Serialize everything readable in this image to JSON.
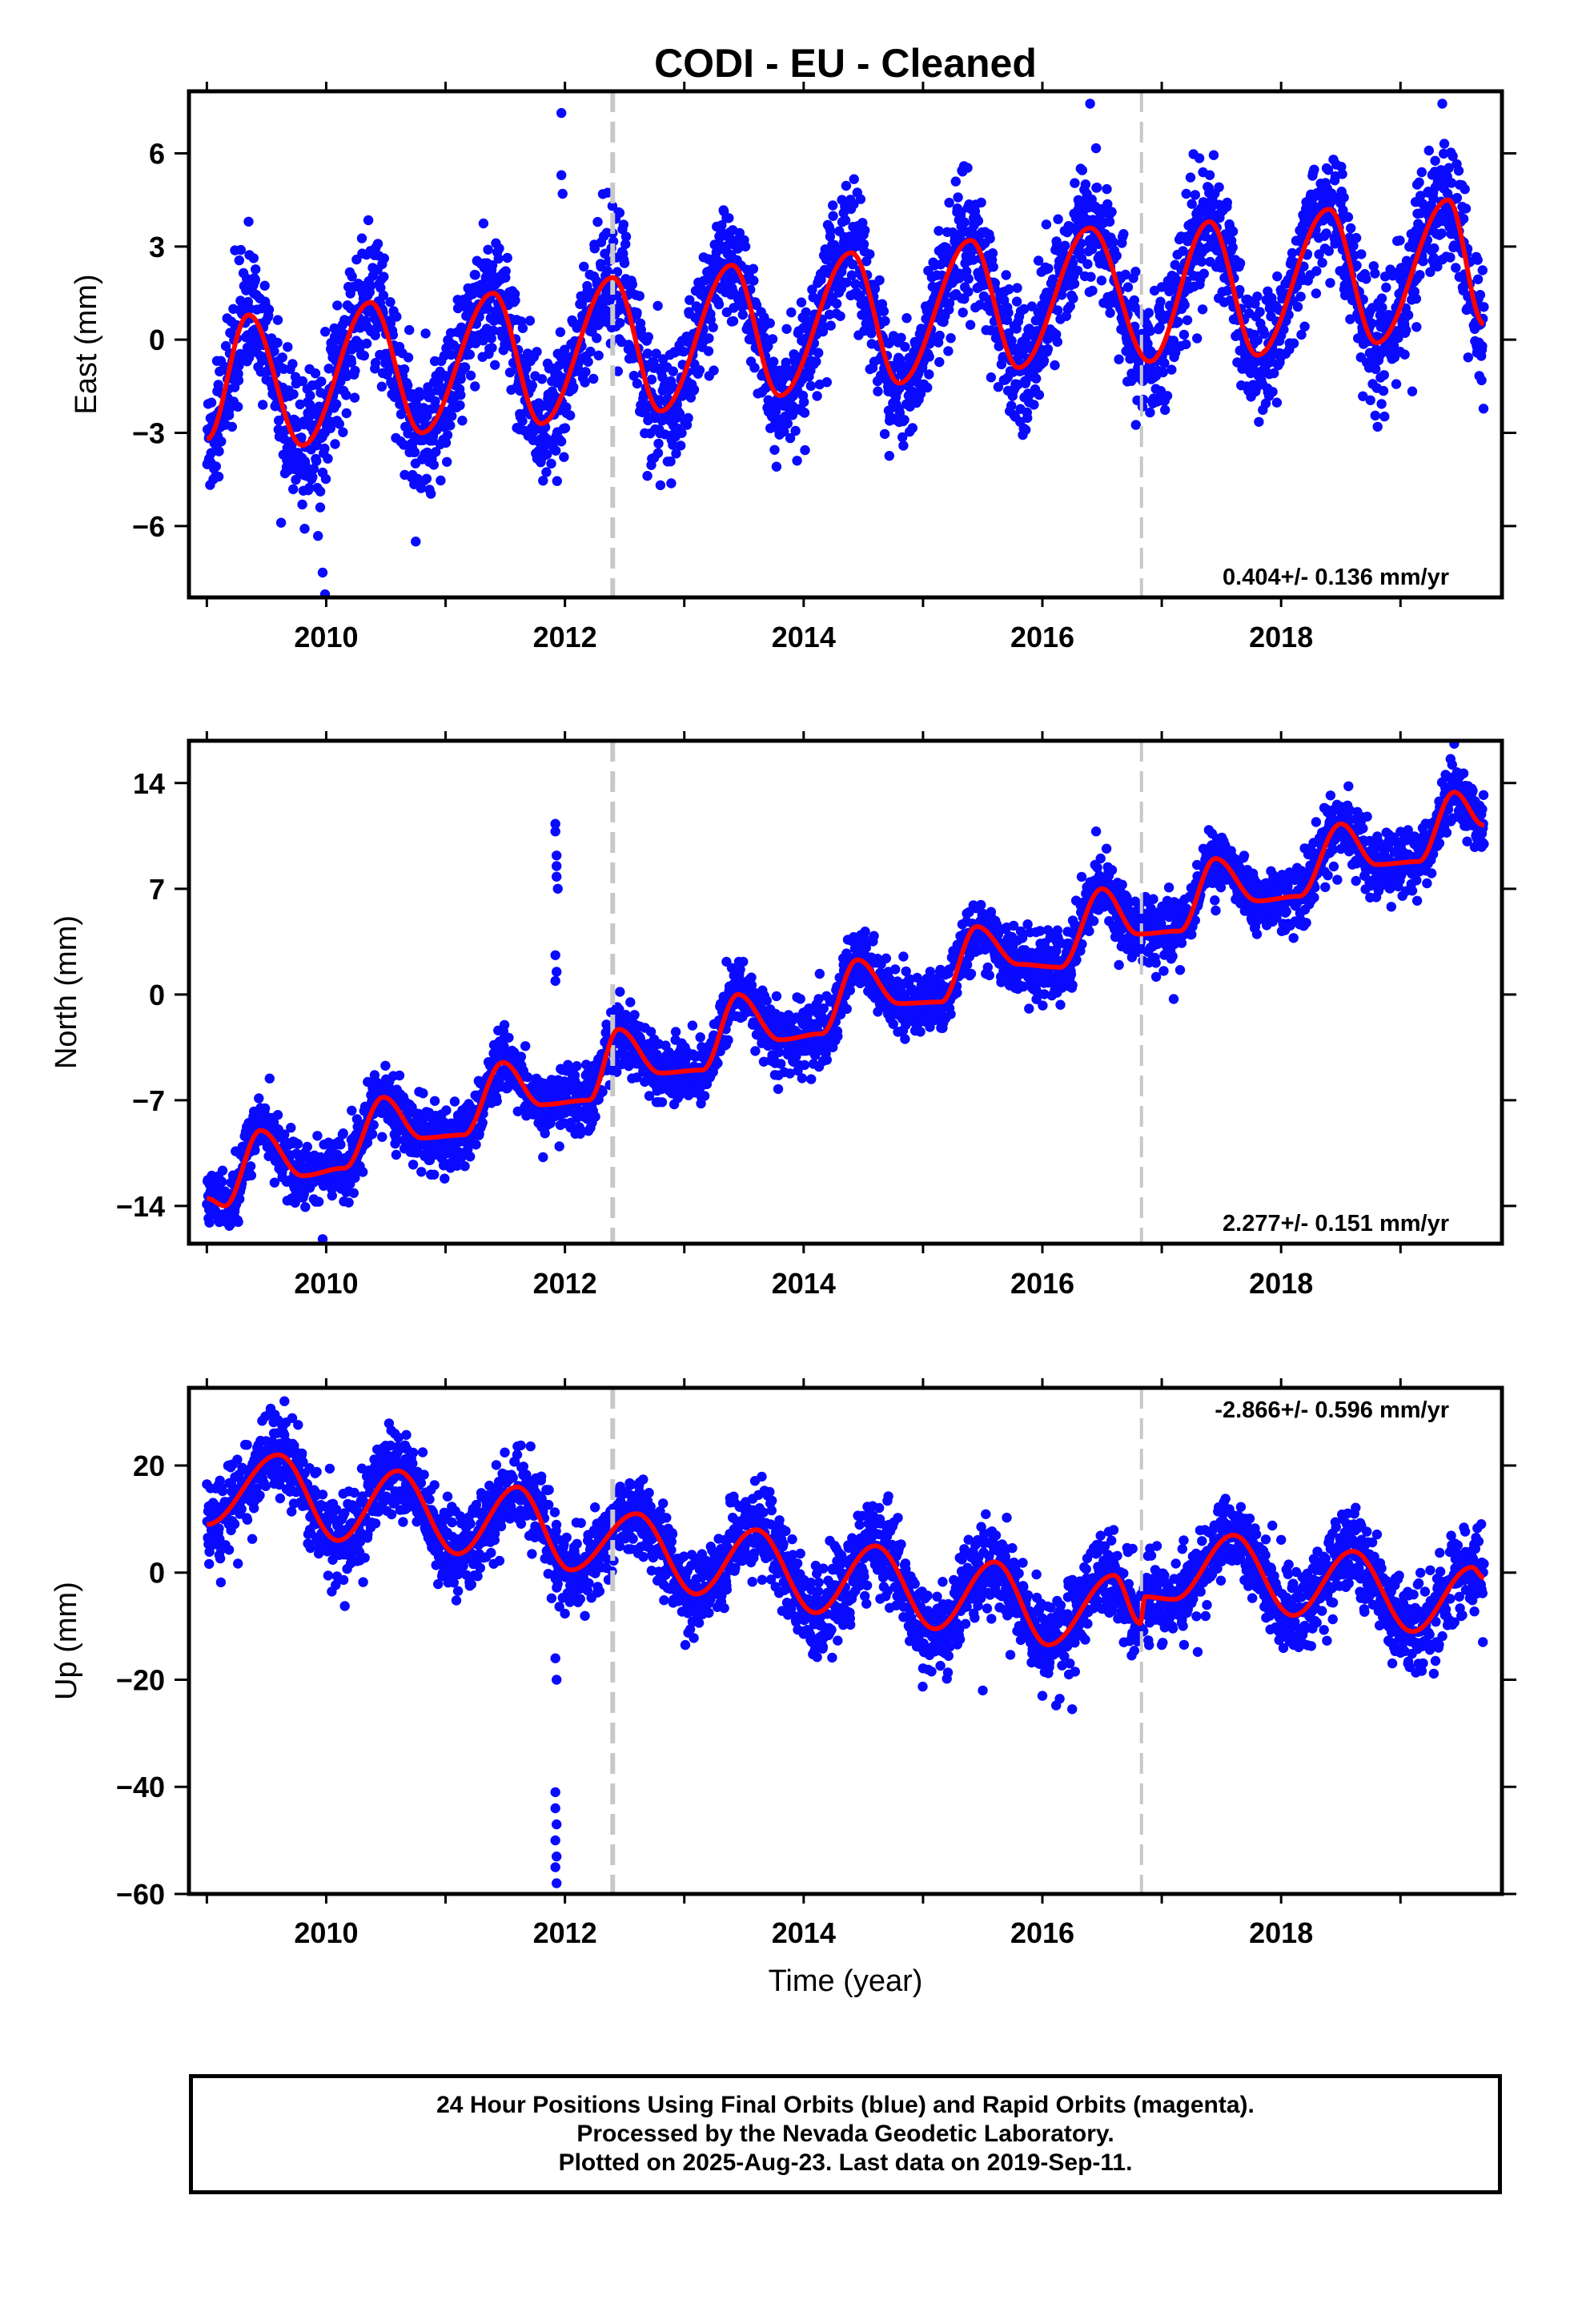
{
  "title": "CODI  - EU - Cleaned",
  "colors": {
    "dots": "#0a0aff",
    "model": "#ff0000",
    "break_lines": "#c8c8c8",
    "frame": "#000000"
  },
  "chart_data": [
    {
      "type": "scatter",
      "component": "East",
      "ylabel": "East (mm)",
      "xlim": [
        2008.85,
        2019.85
      ],
      "ylim": [
        -8.3,
        8.0
      ],
      "yticks": [
        6,
        3,
        0,
        -3,
        -6
      ],
      "ytick_labels": [
        "6",
        "3",
        "0",
        "−3",
        "−6"
      ],
      "xticks": [
        2010,
        2012,
        2014,
        2016,
        2018
      ],
      "xtick_labels": [
        "2010",
        "2012",
        "2014",
        "2016",
        "2018"
      ],
      "rate_label": "0.404+/- 0.136 mm/yr",
      "break_lines": [
        2012.4,
        2016.83
      ],
      "model_peaks": [
        {
          "x": 2009.35,
          "y": 0.8
        },
        {
          "x": 2010.37,
          "y": 1.2
        },
        {
          "x": 2011.4,
          "y": 1.5
        },
        {
          "x": 2012.4,
          "y": 2.0
        },
        {
          "x": 2013.4,
          "y": 2.4
        },
        {
          "x": 2014.4,
          "y": 2.8
        },
        {
          "x": 2015.4,
          "y": 3.2
        },
        {
          "x": 2016.4,
          "y": 3.6
        },
        {
          "x": 2017.4,
          "y": 3.8
        },
        {
          "x": 2018.4,
          "y": 4.2
        },
        {
          "x": 2019.4,
          "y": 4.5
        }
      ],
      "model_troughs": [
        {
          "x": 2009.0,
          "y": -3.2
        },
        {
          "x": 2009.8,
          "y": -3.4
        },
        {
          "x": 2010.8,
          "y": -3.0
        },
        {
          "x": 2011.8,
          "y": -2.7
        },
        {
          "x": 2012.8,
          "y": -2.3
        },
        {
          "x": 2013.8,
          "y": -1.8
        },
        {
          "x": 2014.8,
          "y": -1.4
        },
        {
          "x": 2015.8,
          "y": -0.9
        },
        {
          "x": 2016.9,
          "y": -0.7
        },
        {
          "x": 2017.8,
          "y": -0.5
        },
        {
          "x": 2018.8,
          "y": -0.1
        },
        {
          "x": 2019.7,
          "y": 0.5
        }
      ],
      "scatter_sd": 1.0,
      "outliers": [
        {
          "x": 2009.35,
          "y": 3.8
        },
        {
          "x": 2009.95,
          "y": -5.4
        },
        {
          "x": 2009.97,
          "y": -7.5
        },
        {
          "x": 2009.99,
          "y": -8.2
        },
        {
          "x": 2010.75,
          "y": -6.5
        },
        {
          "x": 2011.97,
          "y": 7.3
        },
        {
          "x": 2011.97,
          "y": 5.3
        },
        {
          "x": 2011.98,
          "y": 4.7
        },
        {
          "x": 2016.4,
          "y": 7.6
        },
        {
          "x": 2019.35,
          "y": 7.6
        }
      ]
    },
    {
      "type": "scatter",
      "component": "North",
      "ylabel": "North (mm)",
      "xlim": [
        2008.85,
        2019.85
      ],
      "ylim": [
        -16.5,
        16.8
      ],
      "yticks": [
        14,
        7,
        0,
        -7,
        -14
      ],
      "ytick_labels": [
        "14",
        "7",
        "0",
        "−7",
        "−14"
      ],
      "xticks": [
        2010,
        2012,
        2014,
        2016,
        2018
      ],
      "xtick_labels": [
        "2010",
        "2012",
        "2014",
        "2016",
        "2018"
      ],
      "rate_label": "2.277+/- 0.151 mm/yr",
      "break_lines": [
        2012.4,
        2016.83
      ],
      "model_peaks": [
        {
          "x": 2009.45,
          "y": -9.0
        },
        {
          "x": 2010.48,
          "y": -6.8
        },
        {
          "x": 2011.48,
          "y": -4.5
        },
        {
          "x": 2012.45,
          "y": -2.3
        },
        {
          "x": 2013.45,
          "y": 0.0
        },
        {
          "x": 2014.45,
          "y": 2.3
        },
        {
          "x": 2015.45,
          "y": 4.5
        },
        {
          "x": 2016.5,
          "y": 7.0
        },
        {
          "x": 2017.45,
          "y": 9.0
        },
        {
          "x": 2018.5,
          "y": 11.3
        },
        {
          "x": 2019.45,
          "y": 13.4
        }
      ],
      "model_troughs": [
        {
          "x": 2009.0,
          "y": -13.5
        },
        {
          "x": 2009.15,
          "y": -14.0
        },
        {
          "x": 2009.8,
          "y": -12.0
        },
        {
          "x": 2010.15,
          "y": -11.5
        },
        {
          "x": 2010.8,
          "y": -9.5
        },
        {
          "x": 2011.15,
          "y": -9.3
        },
        {
          "x": 2011.8,
          "y": -7.3
        },
        {
          "x": 2012.2,
          "y": -7.0
        },
        {
          "x": 2012.8,
          "y": -5.2
        },
        {
          "x": 2013.15,
          "y": -5.0
        },
        {
          "x": 2013.8,
          "y": -3.0
        },
        {
          "x": 2014.15,
          "y": -2.6
        },
        {
          "x": 2014.8,
          "y": -0.6
        },
        {
          "x": 2015.15,
          "y": -0.5
        },
        {
          "x": 2015.8,
          "y": 2.0
        },
        {
          "x": 2016.15,
          "y": 1.8
        },
        {
          "x": 2016.8,
          "y": 4.0
        },
        {
          "x": 2017.15,
          "y": 4.2
        },
        {
          "x": 2017.8,
          "y": 6.2
        },
        {
          "x": 2018.15,
          "y": 6.5
        },
        {
          "x": 2018.8,
          "y": 8.6
        },
        {
          "x": 2019.15,
          "y": 8.8
        },
        {
          "x": 2019.7,
          "y": 11.2
        }
      ],
      "scatter_sd": 1.1,
      "outliers": [
        {
          "x": 2011.92,
          "y": 11.3
        },
        {
          "x": 2011.92,
          "y": 10.8
        },
        {
          "x": 2011.93,
          "y": 9.2
        },
        {
          "x": 2011.93,
          "y": 8.5
        },
        {
          "x": 2011.93,
          "y": 7.8
        },
        {
          "x": 2011.94,
          "y": 7.0
        },
        {
          "x": 2011.92,
          "y": 2.6
        },
        {
          "x": 2011.93,
          "y": 1.5
        },
        {
          "x": 2011.92,
          "y": 0.9
        },
        {
          "x": 2009.97,
          "y": -16.2
        },
        {
          "x": 2016.45,
          "y": 10.8
        },
        {
          "x": 2017.1,
          "y": -0.3
        },
        {
          "x": 2019.45,
          "y": 16.6
        }
      ]
    },
    {
      "type": "scatter",
      "component": "Up",
      "ylabel": "Up (mm)",
      "xlim": [
        2008.85,
        2019.85
      ],
      "ylim": [
        -60,
        34.5
      ],
      "yticks": [
        20,
        0,
        -20,
        -40,
        -60
      ],
      "ytick_labels": [
        "20",
        "0",
        "−20",
        "−40",
        "−60"
      ],
      "xticks": [
        2010,
        2012,
        2014,
        2016,
        2018
      ],
      "xtick_labels": [
        "2010",
        "2012",
        "2014",
        "2016",
        "2018"
      ],
      "rate_label": "-2.866+/- 0.596 mm/yr",
      "break_lines": [
        2012.4,
        2016.83
      ],
      "model_peaks": [
        {
          "x": 2009.6,
          "y": 22.0
        },
        {
          "x": 2010.6,
          "y": 19.0
        },
        {
          "x": 2011.6,
          "y": 16.0
        },
        {
          "x": 2012.6,
          "y": 11.0
        },
        {
          "x": 2013.6,
          "y": 8.0
        },
        {
          "x": 2014.6,
          "y": 5.0
        },
        {
          "x": 2015.6,
          "y": 2.0
        },
        {
          "x": 2016.6,
          "y": -0.5
        },
        {
          "x": 2017.6,
          "y": 7.0
        },
        {
          "x": 2018.6,
          "y": 4.0
        },
        {
          "x": 2019.6,
          "y": 1.0
        }
      ],
      "model_troughs": [
        {
          "x": 2009.0,
          "y": 9.0
        },
        {
          "x": 2010.1,
          "y": 6.0
        },
        {
          "x": 2011.1,
          "y": 3.5
        },
        {
          "x": 2012.05,
          "y": 0.5
        },
        {
          "x": 2013.1,
          "y": -4.0
        },
        {
          "x": 2014.1,
          "y": -7.5
        },
        {
          "x": 2015.1,
          "y": -10.5
        },
        {
          "x": 2016.05,
          "y": -13.5
        },
        {
          "x": 2016.82,
          "y": -9.5
        },
        {
          "x": 2016.86,
          "y": -4.5
        },
        {
          "x": 2017.1,
          "y": -5.0
        },
        {
          "x": 2018.1,
          "y": -8.0
        },
        {
          "x": 2019.1,
          "y": -11.0
        },
        {
          "x": 2019.7,
          "y": -1.0
        }
      ],
      "scatter_sd": 4.0,
      "outliers": [
        {
          "x": 2011.92,
          "y": -41.0
        },
        {
          "x": 2011.92,
          "y": -44.0
        },
        {
          "x": 2011.93,
          "y": -47.0
        },
        {
          "x": 2011.92,
          "y": -50.0
        },
        {
          "x": 2011.93,
          "y": -53.0
        },
        {
          "x": 2011.92,
          "y": -55.0
        },
        {
          "x": 2011.93,
          "y": -58.0
        },
        {
          "x": 2011.93,
          "y": -20.0
        },
        {
          "x": 2011.92,
          "y": -16.0
        },
        {
          "x": 2009.65,
          "y": 32.0
        },
        {
          "x": 2015.5,
          "y": -22.0
        },
        {
          "x": 2016.0,
          "y": -23.0
        }
      ]
    }
  ],
  "footer": {
    "line1": "24 Hour Positions Using Final Orbits (blue) and Rapid Orbits (magenta).",
    "line2": "Processed by the Nevada Geodetic Laboratory.",
    "line3": "Plotted on 2025-Aug-23. Last data on 2019-Sep-11."
  },
  "xlabel": "Time (year)"
}
